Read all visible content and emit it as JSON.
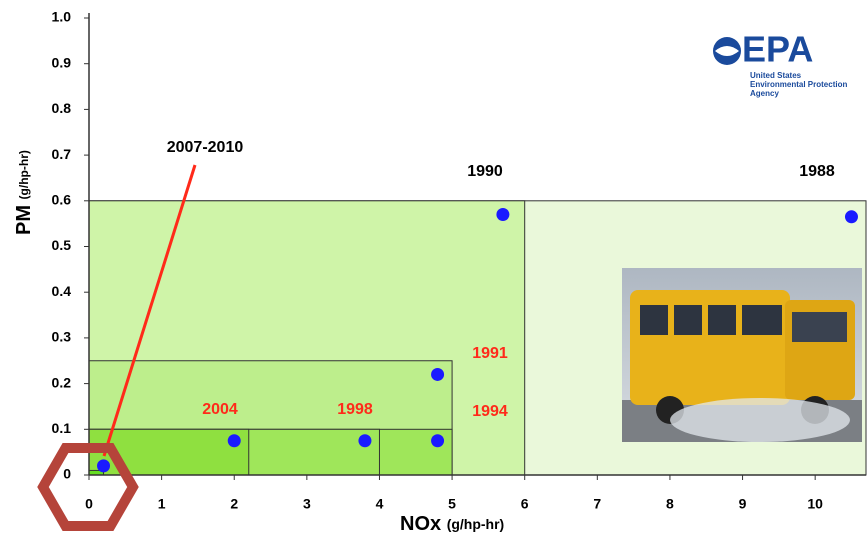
{
  "chart_data": {
    "type": "scatter",
    "xlabel": "NOx",
    "xlabel_unit": "(g/hp-hr)",
    "ylabel": "PM",
    "ylabel_unit": "(g/hp-hr)",
    "xlim": [
      0,
      10.7
    ],
    "ylim": [
      0,
      1.0
    ],
    "xticks": [
      0,
      1,
      2,
      3,
      4,
      5,
      6,
      7,
      8,
      9,
      10
    ],
    "yticks": [
      0,
      0.1,
      0.2,
      0.3,
      0.4,
      0.5,
      0.6,
      0.7,
      0.8,
      0.9,
      {
        "value": 1,
        "label": "1.0"
      }
    ],
    "series": [
      {
        "color": "#1a1aff",
        "x": [
          0.2,
          2.0,
          3.8,
          4.8,
          4.8,
          5.7,
          10.5
        ],
        "values": [
          0.02,
          0.075,
          0.075,
          0.075,
          0.22,
          0.57,
          0.565
        ]
      }
    ],
    "standards": [
      {
        "label": "1988",
        "nox": 10.7,
        "pm": 0.6,
        "color": "#eaf8da",
        "label_color": "#000000"
      },
      {
        "label": "1990",
        "nox": 6.0,
        "pm": 0.6,
        "color": "#cff4a8",
        "label_color": "#000000"
      },
      {
        "label": "1991",
        "nox": 5.0,
        "pm": 0.25,
        "color": "#bdee8c",
        "label_color": "#ff2a1a"
      },
      {
        "label": "1994",
        "nox": 5.0,
        "pm": 0.1,
        "color": "#9fe65a",
        "label_color": "#ff2a1a"
      },
      {
        "label": "1998",
        "nox": 4.0,
        "pm": 0.1,
        "color": "#9fe65a",
        "label_color": "#ff2a1a"
      },
      {
        "label": "2004",
        "nox": 2.2,
        "pm": 0.1,
        "color": "#8fe040",
        "label_color": "#ff2a1a"
      },
      {
        "label": "2007-2010",
        "nox": 0.2,
        "pm": 0.01,
        "color": "#66dd22",
        "label_color": "#000000"
      }
    ]
  },
  "logo": {
    "name": "EPA",
    "lines": [
      "United States",
      "Environmental Protection",
      "Agency"
    ]
  }
}
